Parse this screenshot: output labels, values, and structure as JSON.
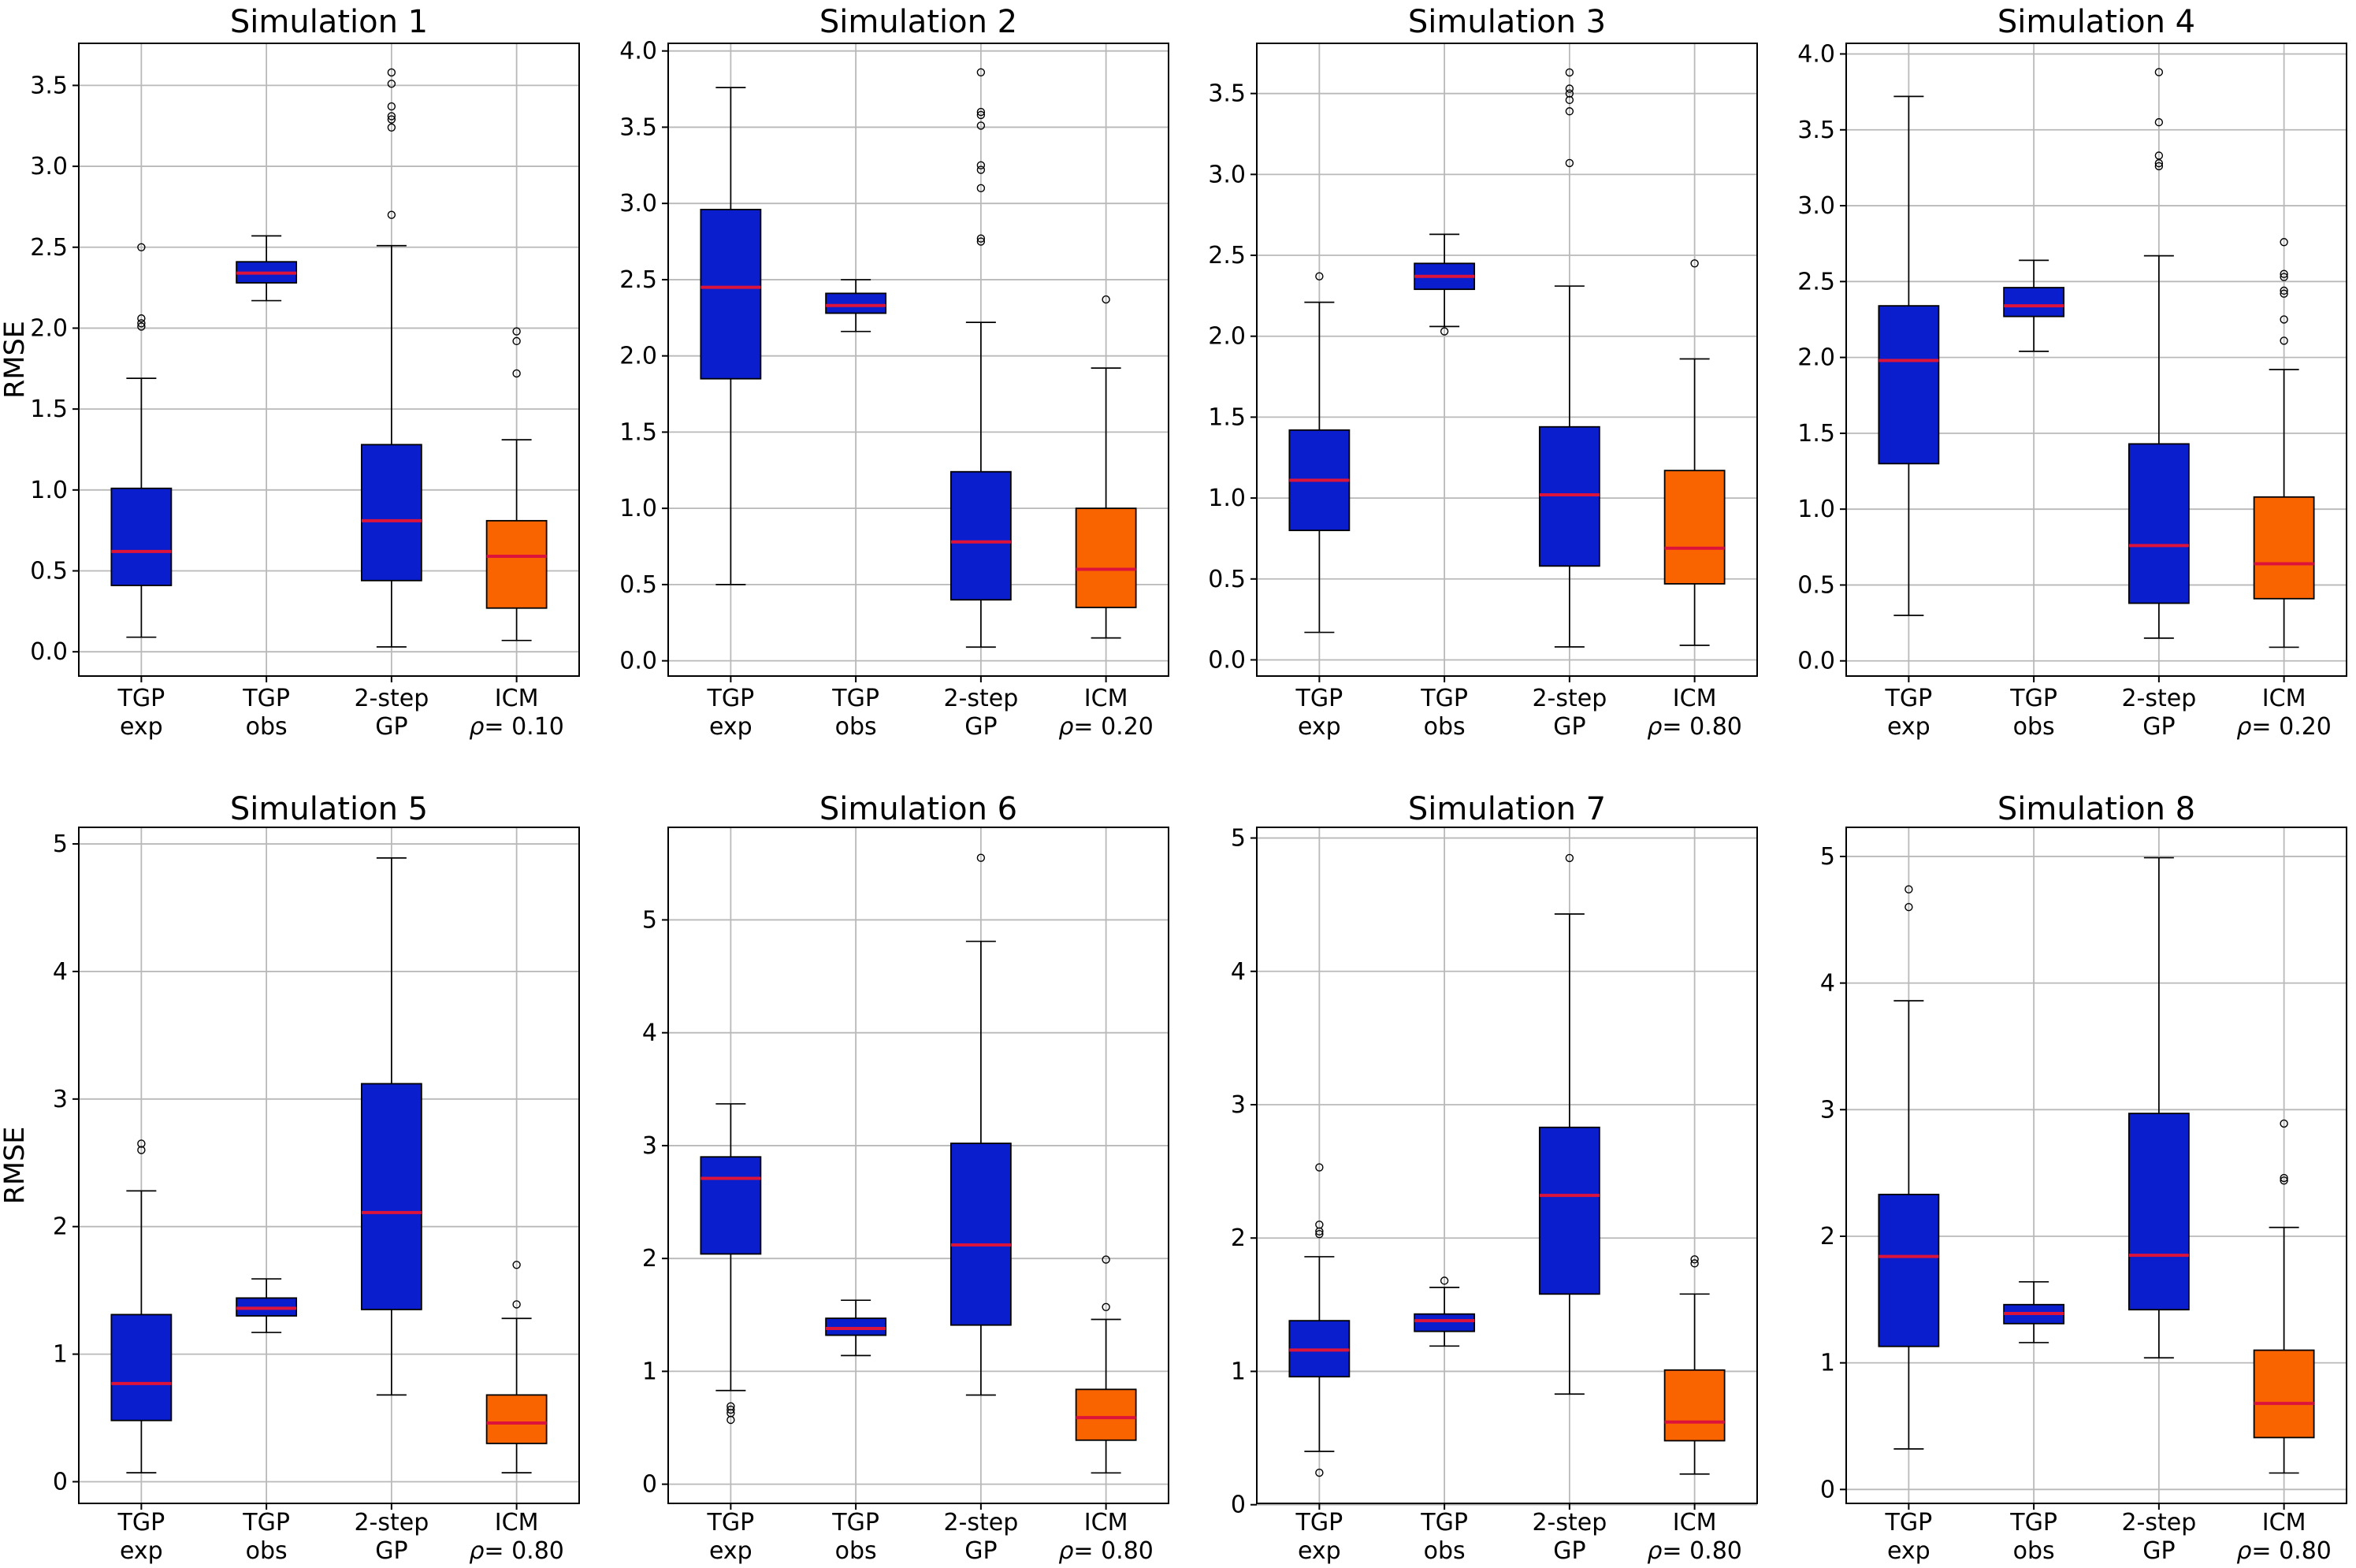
{
  "figure": {
    "ylabel": "RMSE",
    "colors": {
      "box_blue": "#0a1ecd",
      "box_orange": "#fa6400",
      "median_red": "#dc143c",
      "grid_line": "#b9b9b9",
      "axis_line": "#000000",
      "background": "#ffffff"
    }
  },
  "chart_data": [
    {
      "type": "boxplot",
      "title": "Simulation 1",
      "ylabel": "RMSE",
      "grid": true,
      "ylim": [
        -0.15,
        3.76
      ],
      "yticks": [
        0,
        0.5,
        1,
        1.5,
        2,
        2.5,
        3,
        3.5
      ],
      "ytick_labels": [
        "0.0",
        "0.5",
        "1.0",
        "1.5",
        "2.0",
        "2.5",
        "3.0",
        "3.5"
      ],
      "categories": [
        [
          "TGP",
          "exp"
        ],
        [
          "TGP",
          "obs"
        ],
        [
          "2-step",
          "GP"
        ],
        [
          "ICM",
          "ρ= 0.10"
        ]
      ],
      "boxes": [
        {
          "label": "TGP exp",
          "color": "#0a1ecd",
          "whislo": 0.09,
          "q1": 0.41,
          "med": 0.62,
          "q3": 1.01,
          "whishi": 1.69,
          "fliers": [
            2.01,
            2.03,
            2.06,
            2.5
          ]
        },
        {
          "label": "TGP obs",
          "color": "#0a1ecd",
          "whislo": 2.17,
          "q1": 2.28,
          "med": 2.34,
          "q3": 2.41,
          "whishi": 2.57,
          "fliers": []
        },
        {
          "label": "2-step GP",
          "color": "#0a1ecd",
          "whislo": 0.03,
          "q1": 0.44,
          "med": 0.81,
          "q3": 1.28,
          "whishi": 2.51,
          "fliers": [
            2.7,
            3.24,
            3.29,
            3.31,
            3.37,
            3.51,
            3.58
          ]
        },
        {
          "label": "ICM rho=0.10",
          "color": "#fa6400",
          "whislo": 0.07,
          "q1": 0.27,
          "med": 0.59,
          "q3": 0.81,
          "whishi": 1.31,
          "fliers": [
            1.72,
            1.92,
            1.98
          ]
        }
      ]
    },
    {
      "type": "boxplot",
      "title": "Simulation 2",
      "ylabel": "",
      "grid": true,
      "ylim": [
        -0.1,
        4.05
      ],
      "yticks": [
        0,
        0.5,
        1,
        1.5,
        2,
        2.5,
        3,
        3.5,
        4
      ],
      "ytick_labels": [
        "0.0",
        "0.5",
        "1.0",
        "1.5",
        "2.0",
        "2.5",
        "3.0",
        "3.5",
        "4.0"
      ],
      "categories": [
        [
          "TGP",
          "exp"
        ],
        [
          "TGP",
          "obs"
        ],
        [
          "2-step",
          "GP"
        ],
        [
          "ICM",
          "ρ= 0.20"
        ]
      ],
      "boxes": [
        {
          "label": "TGP exp",
          "color": "#0a1ecd",
          "whislo": 0.5,
          "q1": 1.85,
          "med": 2.45,
          "q3": 2.96,
          "whishi": 3.76,
          "fliers": []
        },
        {
          "label": "TGP obs",
          "color": "#0a1ecd",
          "whislo": 2.16,
          "q1": 2.28,
          "med": 2.33,
          "q3": 2.41,
          "whishi": 2.5,
          "fliers": []
        },
        {
          "label": "2-step GP",
          "color": "#0a1ecd",
          "whislo": 0.09,
          "q1": 0.4,
          "med": 0.78,
          "q3": 1.24,
          "whishi": 2.22,
          "fliers": [
            2.75,
            2.77,
            3.1,
            3.22,
            3.25,
            3.51,
            3.58,
            3.6,
            3.86
          ]
        },
        {
          "label": "ICM rho=0.20",
          "color": "#fa6400",
          "whislo": 0.15,
          "q1": 0.35,
          "med": 0.6,
          "q3": 1.0,
          "whishi": 1.92,
          "fliers": [
            2.37
          ]
        }
      ]
    },
    {
      "type": "boxplot",
      "title": "Simulation 3",
      "ylabel": "",
      "grid": true,
      "ylim": [
        -0.1,
        3.81
      ],
      "yticks": [
        0,
        0.5,
        1,
        1.5,
        2,
        2.5,
        3,
        3.5
      ],
      "ytick_labels": [
        "0.0",
        "0.5",
        "1.0",
        "1.5",
        "2.0",
        "2.5",
        "3.0",
        "3.5"
      ],
      "categories": [
        [
          "TGP",
          "exp"
        ],
        [
          "TGP",
          "obs"
        ],
        [
          "2-step",
          "GP"
        ],
        [
          "ICM",
          "ρ= 0.80"
        ]
      ],
      "boxes": [
        {
          "label": "TGP exp",
          "color": "#0a1ecd",
          "whislo": 0.17,
          "q1": 0.8,
          "med": 1.11,
          "q3": 1.42,
          "whishi": 2.21,
          "fliers": [
            2.37
          ]
        },
        {
          "label": "TGP obs",
          "color": "#0a1ecd",
          "whislo": 2.06,
          "q1": 2.29,
          "med": 2.37,
          "q3": 2.45,
          "whishi": 2.63,
          "fliers": [
            2.03
          ]
        },
        {
          "label": "2-step GP",
          "color": "#0a1ecd",
          "whislo": 0.08,
          "q1": 0.58,
          "med": 1.02,
          "q3": 1.44,
          "whishi": 2.31,
          "fliers": [
            3.07,
            3.39,
            3.46,
            3.5,
            3.53,
            3.63
          ]
        },
        {
          "label": "ICM rho=0.80",
          "color": "#fa6400",
          "whislo": 0.09,
          "q1": 0.47,
          "med": 0.69,
          "q3": 1.17,
          "whishi": 1.86,
          "fliers": [
            2.45
          ]
        }
      ]
    },
    {
      "type": "boxplot",
      "title": "Simulation 4",
      "ylabel": "",
      "grid": true,
      "ylim": [
        -0.1,
        4.07
      ],
      "yticks": [
        0,
        0.5,
        1,
        1.5,
        2,
        2.5,
        3,
        3.5,
        4
      ],
      "ytick_labels": [
        "0.0",
        "0.5",
        "1.0",
        "1.5",
        "2.0",
        "2.5",
        "3.0",
        "3.5",
        "4.0"
      ],
      "categories": [
        [
          "TGP",
          "exp"
        ],
        [
          "TGP",
          "obs"
        ],
        [
          "2-step",
          "GP"
        ],
        [
          "ICM",
          "ρ= 0.20"
        ]
      ],
      "boxes": [
        {
          "label": "TGP exp",
          "color": "#0a1ecd",
          "whislo": 0.3,
          "q1": 1.3,
          "med": 1.98,
          "q3": 2.34,
          "whishi": 3.72,
          "fliers": []
        },
        {
          "label": "TGP obs",
          "color": "#0a1ecd",
          "whislo": 2.04,
          "q1": 2.27,
          "med": 2.34,
          "q3": 2.46,
          "whishi": 2.64,
          "fliers": []
        },
        {
          "label": "2-step GP",
          "color": "#0a1ecd",
          "whislo": 0.15,
          "q1": 0.38,
          "med": 0.76,
          "q3": 1.43,
          "whishi": 2.67,
          "fliers": [
            3.26,
            3.28,
            3.33,
            3.55,
            3.88
          ]
        },
        {
          "label": "ICM rho=0.20",
          "color": "#fa6400",
          "whislo": 0.09,
          "q1": 0.41,
          "med": 0.64,
          "q3": 1.08,
          "whishi": 1.92,
          "fliers": [
            2.11,
            2.25,
            2.42,
            2.44,
            2.53,
            2.55,
            2.76
          ]
        }
      ]
    },
    {
      "type": "boxplot",
      "title": "Simulation 5",
      "ylabel": "RMSE",
      "grid": true,
      "ylim": [
        -0.17,
        5.13
      ],
      "yticks": [
        0,
        1,
        2,
        3,
        4,
        5
      ],
      "ytick_labels": [
        "0",
        "1",
        "2",
        "3",
        "4",
        "5"
      ],
      "categories": [
        [
          "TGP",
          "exp"
        ],
        [
          "TGP",
          "obs"
        ],
        [
          "2-step",
          "GP"
        ],
        [
          "ICM",
          "ρ= 0.80"
        ]
      ],
      "boxes": [
        {
          "label": "TGP exp",
          "color": "#0a1ecd",
          "whislo": 0.07,
          "q1": 0.48,
          "med": 0.77,
          "q3": 1.31,
          "whishi": 2.28,
          "fliers": [
            2.6,
            2.65
          ]
        },
        {
          "label": "TGP obs",
          "color": "#0a1ecd",
          "whislo": 1.17,
          "q1": 1.3,
          "med": 1.36,
          "q3": 1.44,
          "whishi": 1.59,
          "fliers": []
        },
        {
          "label": "2-step GP",
          "color": "#0a1ecd",
          "whislo": 0.68,
          "q1": 1.35,
          "med": 2.11,
          "q3": 3.12,
          "whishi": 4.89,
          "fliers": []
        },
        {
          "label": "ICM rho=0.80",
          "color": "#fa6400",
          "whislo": 0.07,
          "q1": 0.3,
          "med": 0.46,
          "q3": 0.68,
          "whishi": 1.28,
          "fliers": [
            1.39,
            1.7
          ]
        }
      ]
    },
    {
      "type": "boxplot",
      "title": "Simulation 6",
      "ylabel": "",
      "grid": true,
      "ylim": [
        -0.17,
        5.82
      ],
      "yticks": [
        0,
        1,
        2,
        3,
        4,
        5
      ],
      "ytick_labels": [
        "0",
        "1",
        "2",
        "3",
        "4",
        "5"
      ],
      "categories": [
        [
          "TGP",
          "exp"
        ],
        [
          "TGP",
          "obs"
        ],
        [
          "2-step",
          "GP"
        ],
        [
          "ICM",
          "ρ= 0.80"
        ]
      ],
      "boxes": [
        {
          "label": "TGP exp",
          "color": "#0a1ecd",
          "whislo": 0.83,
          "q1": 2.04,
          "med": 2.71,
          "q3": 2.9,
          "whishi": 3.37,
          "fliers": [
            0.57,
            0.63,
            0.66,
            0.69
          ]
        },
        {
          "label": "TGP obs",
          "color": "#0a1ecd",
          "whislo": 1.14,
          "q1": 1.32,
          "med": 1.38,
          "q3": 1.47,
          "whishi": 1.63,
          "fliers": []
        },
        {
          "label": "2-step GP",
          "color": "#0a1ecd",
          "whislo": 0.79,
          "q1": 1.41,
          "med": 2.12,
          "q3": 3.02,
          "whishi": 4.81,
          "fliers": [
            5.55
          ]
        },
        {
          "label": "ICM rho=0.80",
          "color": "#fa6400",
          "whislo": 0.1,
          "q1": 0.39,
          "med": 0.59,
          "q3": 0.84,
          "whishi": 1.46,
          "fliers": [
            1.57,
            1.99
          ]
        }
      ]
    },
    {
      "type": "boxplot",
      "title": "Simulation 7",
      "ylabel": "",
      "grid": true,
      "ylim": [
        0.01,
        5.08
      ],
      "yticks": [
        0,
        1,
        2,
        3,
        4,
        5
      ],
      "ytick_labels": [
        "0",
        "1",
        "2",
        "3",
        "4",
        "5"
      ],
      "categories": [
        [
          "TGP",
          "exp"
        ],
        [
          "TGP",
          "obs"
        ],
        [
          "2-step",
          "GP"
        ],
        [
          "ICM",
          "ρ= 0.80"
        ]
      ],
      "boxes": [
        {
          "label": "TGP exp",
          "color": "#0a1ecd",
          "whislo": 0.4,
          "q1": 0.96,
          "med": 1.16,
          "q3": 1.38,
          "whishi": 1.86,
          "fliers": [
            0.24,
            2.03,
            2.05,
            2.1,
            2.53
          ]
        },
        {
          "label": "TGP obs",
          "color": "#0a1ecd",
          "whislo": 1.19,
          "q1": 1.3,
          "med": 1.38,
          "q3": 1.43,
          "whishi": 1.63,
          "fliers": [
            1.68
          ]
        },
        {
          "label": "2-step GP",
          "color": "#0a1ecd",
          "whislo": 0.83,
          "q1": 1.58,
          "med": 2.32,
          "q3": 2.83,
          "whishi": 4.43,
          "fliers": [
            4.85
          ]
        },
        {
          "label": "ICM rho=0.80",
          "color": "#fa6400",
          "whislo": 0.23,
          "q1": 0.48,
          "med": 0.62,
          "q3": 1.01,
          "whishi": 1.58,
          "fliers": [
            1.81,
            1.84
          ]
        }
      ]
    },
    {
      "type": "boxplot",
      "title": "Simulation 8",
      "ylabel": "",
      "grid": true,
      "ylim": [
        -0.11,
        5.23
      ],
      "yticks": [
        0,
        1,
        2,
        3,
        4,
        5
      ],
      "ytick_labels": [
        "0",
        "1",
        "2",
        "3",
        "4",
        "5"
      ],
      "categories": [
        [
          "TGP",
          "exp"
        ],
        [
          "TGP",
          "obs"
        ],
        [
          "2-step",
          "GP"
        ],
        [
          "ICM",
          "ρ= 0.80"
        ]
      ],
      "boxes": [
        {
          "label": "TGP exp",
          "color": "#0a1ecd",
          "whislo": 0.32,
          "q1": 1.13,
          "med": 1.84,
          "q3": 2.33,
          "whishi": 3.86,
          "fliers": [
            4.6,
            4.74
          ]
        },
        {
          "label": "TGP obs",
          "color": "#0a1ecd",
          "whislo": 1.16,
          "q1": 1.31,
          "med": 1.39,
          "q3": 1.46,
          "whishi": 1.64,
          "fliers": []
        },
        {
          "label": "2-step GP",
          "color": "#0a1ecd",
          "whislo": 1.04,
          "q1": 1.42,
          "med": 1.85,
          "q3": 2.97,
          "whishi": 4.99,
          "fliers": []
        },
        {
          "label": "ICM rho=0.80",
          "color": "#fa6400",
          "whislo": 0.13,
          "q1": 0.41,
          "med": 0.68,
          "q3": 1.1,
          "whishi": 2.07,
          "fliers": [
            2.44,
            2.46,
            2.89
          ]
        }
      ]
    }
  ]
}
